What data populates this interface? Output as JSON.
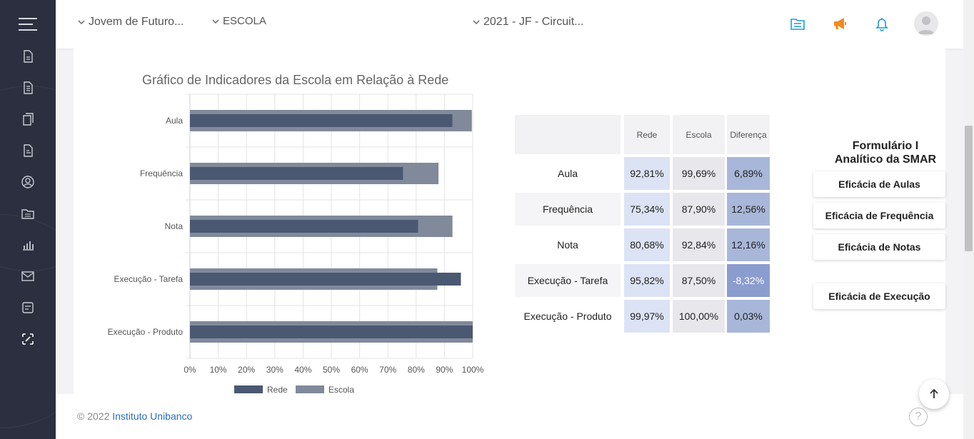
{
  "topbar": {
    "program": "Jovem de Futuro...",
    "level": "ESCOLA",
    "cycle": "2021 - JF - Circuit..."
  },
  "chart_data": {
    "type": "bar",
    "orientation": "horizontal",
    "title": "Gráfico de Indicadores da Escola em Relação à Rede",
    "categories": [
      "Aula",
      "Frequência",
      "Nota",
      "Execução - Tarefa",
      "Execução - Produto"
    ],
    "series": [
      {
        "name": "Rede",
        "values": [
          92.81,
          75.34,
          80.68,
          95.82,
          99.97
        ]
      },
      {
        "name": "Escola",
        "values": [
          99.69,
          87.9,
          92.84,
          87.5,
          100.0
        ]
      }
    ],
    "xlim": [
      0,
      100
    ],
    "xticks": [
      "0%",
      "10%",
      "20%",
      "30%",
      "40%",
      "50%",
      "60%",
      "70%",
      "80%",
      "90%",
      "100%"
    ],
    "grid": true,
    "legend": "bottom",
    "colors": {
      "Rede": "#4a5872",
      "Escola": "#808a9b"
    }
  },
  "table": {
    "headers": [
      "Rede",
      "Escola",
      "Diferença"
    ],
    "rows": [
      {
        "label": "Aula",
        "rede": "92,81%",
        "escola": "99,69%",
        "diff": "6,89%"
      },
      {
        "label": "Frequência",
        "rede": "75,34%",
        "escola": "87,90%",
        "diff": "12,56%"
      },
      {
        "label": "Nota",
        "rede": "80,68%",
        "escola": "92,84%",
        "diff": "12,16%"
      },
      {
        "label": "Execução - Tarefa",
        "rede": "95,82%",
        "escola": "87,50%",
        "diff": "-8,32%"
      },
      {
        "label": "Execução - Produto",
        "rede": "99,97%",
        "escola": "100,00%",
        "diff": "0,03%"
      }
    ]
  },
  "side_panel": {
    "title_line1": "Formulário I",
    "title_line2": "Analítico da SMAR",
    "buttons": [
      "Eficácia de Aulas",
      "Eficácia de Frequência",
      "Eficácia de Notas",
      "Eficácia de Execução"
    ]
  },
  "footer": {
    "copyright": "© 2022",
    "org": "Instituto Unibanco",
    "help": "?"
  },
  "colors": {
    "sidebar": "#2b2f3f",
    "accent_blue": "#1e9bd7",
    "accent_orange": "#f28a1e"
  }
}
